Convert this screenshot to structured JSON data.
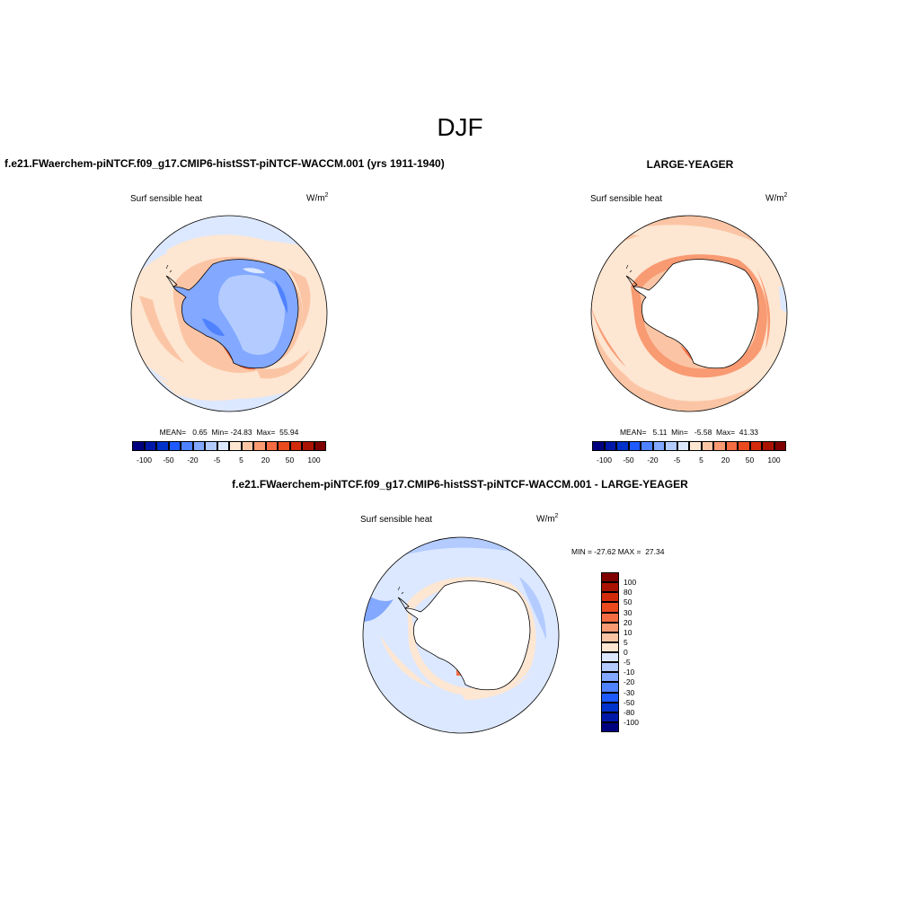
{
  "figure": {
    "season_title": "DJF",
    "variable": "Surf sensible heat",
    "units_base": "W/m",
    "units_exp": "2"
  },
  "panels": {
    "test": {
      "case_title": "f.e21.FWaerchem-piNTCF.f09_g17.CMIP6-histSST-piNTCF-WACCM.001 (yrs 1911-1940)",
      "stats": "MEAN=   0.65  Min= -24.83  Max=  55.94"
    },
    "reference": {
      "case_title": "LARGE-YEAGER",
      "stats": "MEAN=   5.11  Min=   -5.58  Max=  41.33"
    },
    "difference": {
      "case_title": "f.e21.FWaerchem-piNTCF.f09_g17.CMIP6-histSST-piNTCF-WACCM.001 - LARGE-YEAGER",
      "stats": "MIN = -27.62 MAX =  27.34"
    }
  },
  "colorbar": {
    "levels": [
      "-100",
      "-50",
      "-20",
      "-5",
      "5",
      "20",
      "50",
      "100"
    ],
    "diff_levels": [
      "100",
      "80",
      "50",
      "30",
      "20",
      "10",
      "5",
      "0",
      "-5",
      "-10",
      "-20",
      "-30",
      "-50",
      "-80",
      "-100"
    ],
    "colors": [
      "#00007f",
      "#0018a8",
      "#0033cc",
      "#1e5aff",
      "#4f82ff",
      "#82a8ff",
      "#b3cbff",
      "#dce8ff",
      "#fde6d2",
      "#fbc5a5",
      "#f89a72",
      "#f46c42",
      "#ea4a1e",
      "#d42a0c",
      "#aa1200",
      "#7f0000"
    ],
    "diff_colors": [
      "#7f0000",
      "#aa1200",
      "#d42a0c",
      "#ea4a1e",
      "#f46c42",
      "#f89a72",
      "#fbc5a5",
      "#fde6d2",
      "#dce8ff",
      "#b3cbff",
      "#82a8ff",
      "#4f82ff",
      "#1e5aff",
      "#0033cc",
      "#0018a8",
      "#00007f"
    ]
  }
}
